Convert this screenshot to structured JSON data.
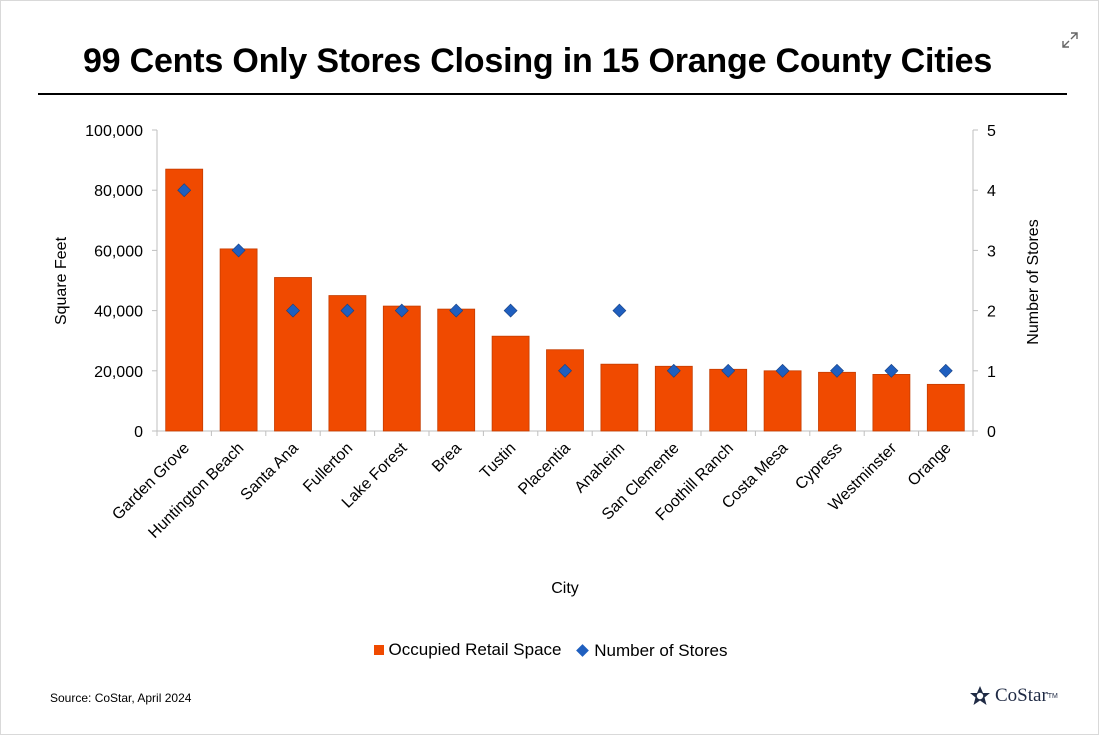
{
  "header": {
    "title": "99 Cents Only Stores Closing in 15 Orange County Cities"
  },
  "chart_data": {
    "type": "bar",
    "xlabel": "City",
    "ylabel": "Square Feet",
    "y2label": "Number of Stores",
    "ylim": [
      0,
      100000
    ],
    "y2lim": [
      0,
      5
    ],
    "yticks": [
      "0",
      "20,000",
      "40,000",
      "60,000",
      "80,000",
      "100,000"
    ],
    "y2ticks": [
      "0",
      "1",
      "2",
      "3",
      "4",
      "5"
    ],
    "grid": false,
    "legend_position": "bottom",
    "categories": [
      "Garden Grove",
      "Huntington Beach",
      "Santa Ana",
      "Fullerton",
      "Lake Forest",
      "Brea",
      "Tustin",
      "Placentia",
      "Anaheim",
      "San Clemente",
      "Foothill Ranch",
      "Costa Mesa",
      "Cypress",
      "Westminster",
      "Orange"
    ],
    "series": [
      {
        "name": "Occupied Retail Space",
        "type": "bar",
        "axis": "left",
        "color": "#f04a00",
        "values": [
          87000,
          60500,
          51000,
          45000,
          41500,
          40500,
          31500,
          27000,
          22200,
          21500,
          20500,
          20000,
          19500,
          18800,
          15500
        ]
      },
      {
        "name": "Number of Stores",
        "type": "scatter",
        "marker": "diamond",
        "axis": "right",
        "color": "#1f5fbf",
        "values": [
          4,
          3,
          2,
          2,
          2,
          2,
          2,
          1,
          2,
          1,
          1,
          1,
          1,
          1,
          1
        ]
      }
    ]
  },
  "footer": {
    "source": "Source: CoStar, April 2024",
    "logo_text": "CoStar",
    "logo_tm": "TM"
  },
  "icons": {
    "expand": "expand-icon",
    "logo": "costar-logo-icon"
  }
}
